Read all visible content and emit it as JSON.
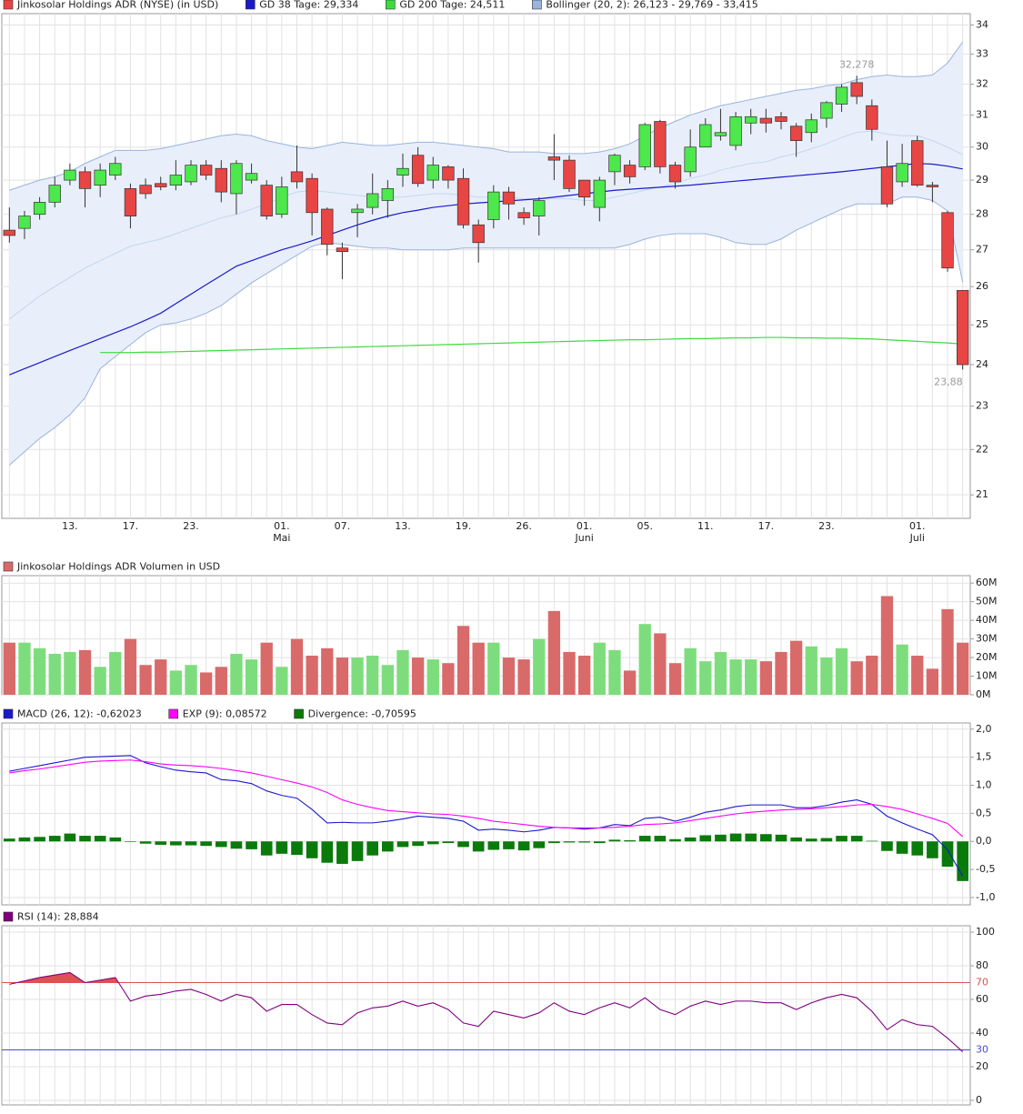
{
  "chart_data": [
    {
      "type": "candlestick",
      "log": true,
      "grid": true,
      "ylim": [
        20.5,
        34.4
      ],
      "yticks": [
        21,
        22,
        23,
        24,
        25,
        26,
        27,
        28,
        29,
        30,
        31,
        32,
        33,
        34
      ],
      "categories": [
        null,
        null,
        null,
        null,
        "13.",
        null,
        null,
        null,
        "17.",
        null,
        null,
        null,
        "23.",
        null,
        null,
        null,
        null,
        null,
        "01.\nMai",
        null,
        null,
        null,
        "07.",
        null,
        null,
        null,
        "13.",
        null,
        null,
        null,
        "19.",
        null,
        null,
        null,
        "26.",
        null,
        null,
        null,
        "01.\nJuni",
        null,
        null,
        null,
        "05.",
        null,
        null,
        null,
        "11.",
        null,
        null,
        null,
        "17.",
        null,
        null,
        null,
        "23.",
        null,
        null,
        null,
        null,
        null,
        "01.\nJuli",
        null,
        null,
        null
      ],
      "ohlc": {
        "name": "Jinkosolar Holdings ADR (NYSE) (in USD)",
        "up_color": "#4ce84c",
        "down_color": "#e84545",
        "open": [
          27.55,
          27.6,
          28.0,
          28.35,
          29.0,
          29.25,
          28.85,
          29.15,
          28.75,
          28.85,
          28.9,
          28.85,
          28.95,
          29.45,
          29.35,
          28.6,
          29.0,
          28.85,
          28.0,
          29.25,
          29.05,
          28.15,
          27.05,
          28.05,
          28.2,
          28.4,
          29.15,
          29.75,
          29.0,
          29.4,
          29.05,
          27.7,
          27.85,
          28.65,
          28.05,
          27.95,
          29.7,
          29.6,
          29.0,
          28.2,
          29.25,
          29.45,
          29.4,
          30.8,
          29.45,
          29.25,
          30.0,
          30.35,
          30.05,
          30.75,
          30.9,
          30.95,
          30.65,
          30.45,
          30.9,
          31.35,
          32.05,
          31.3,
          29.4,
          28.95,
          30.2,
          28.85,
          28.05,
          25.9
        ],
        "high": [
          28.2,
          28.1,
          28.5,
          29.1,
          29.5,
          29.4,
          29.5,
          29.7,
          28.9,
          29.05,
          29.1,
          29.6,
          29.6,
          29.6,
          29.6,
          29.6,
          29.5,
          29.0,
          29.1,
          30.05,
          29.2,
          28.2,
          27.2,
          28.3,
          29.2,
          29.0,
          29.8,
          30.0,
          29.7,
          29.45,
          29.35,
          27.85,
          28.85,
          28.8,
          28.2,
          28.5,
          30.4,
          29.75,
          29.0,
          29.1,
          29.8,
          29.6,
          30.75,
          30.85,
          29.55,
          30.55,
          30.9,
          31.2,
          31.1,
          31.2,
          31.2,
          31.1,
          30.75,
          31.05,
          31.45,
          32.0,
          32.278,
          31.5,
          30.2,
          30.1,
          30.35,
          28.95,
          28.1,
          25.9
        ],
        "low": [
          27.2,
          27.3,
          27.85,
          28.2,
          28.85,
          28.2,
          28.5,
          29.0,
          27.6,
          28.45,
          28.7,
          28.7,
          28.85,
          29.0,
          28.35,
          28.0,
          28.9,
          27.85,
          27.9,
          28.75,
          27.4,
          26.85,
          26.2,
          27.35,
          28.0,
          27.9,
          28.8,
          28.8,
          28.75,
          28.75,
          27.6,
          26.65,
          27.6,
          27.85,
          27.7,
          27.4,
          29.0,
          28.65,
          28.25,
          27.8,
          28.85,
          28.9,
          29.3,
          29.2,
          28.75,
          29.1,
          30.0,
          30.2,
          29.9,
          30.4,
          30.45,
          30.55,
          29.7,
          30.15,
          30.6,
          31.1,
          31.35,
          30.2,
          28.2,
          28.8,
          28.8,
          28.35,
          26.4,
          23.88
        ],
        "close": [
          27.4,
          27.95,
          28.35,
          28.85,
          29.3,
          28.75,
          29.3,
          29.5,
          27.95,
          28.6,
          28.8,
          29.15,
          29.45,
          29.15,
          28.65,
          29.5,
          29.2,
          27.95,
          28.8,
          28.95,
          28.05,
          27.15,
          26.95,
          28.15,
          28.6,
          28.75,
          29.35,
          28.9,
          29.45,
          29.0,
          27.7,
          27.2,
          28.65,
          28.3,
          27.9,
          28.4,
          29.6,
          28.75,
          28.5,
          29.0,
          29.75,
          29.1,
          30.7,
          29.4,
          28.95,
          30.0,
          30.7,
          30.45,
          30.95,
          30.95,
          30.75,
          30.8,
          30.2,
          30.85,
          31.4,
          31.9,
          31.6,
          30.55,
          28.3,
          29.5,
          28.85,
          28.8,
          26.5,
          24.0
        ]
      },
      "series": [
        {
          "name": "GD 38 Tage: 29,334",
          "color": "#1a1acc",
          "values": [
            23.75,
            23.9,
            24.05,
            24.2,
            24.35,
            24.5,
            24.65,
            24.8,
            24.95,
            25.12,
            25.3,
            25.55,
            25.8,
            26.05,
            26.3,
            26.55,
            26.7,
            26.85,
            27.0,
            27.12,
            27.25,
            27.4,
            27.55,
            27.7,
            27.83,
            27.95,
            28.05,
            28.12,
            28.2,
            28.25,
            28.3,
            28.33,
            28.36,
            28.39,
            28.42,
            28.45,
            28.5,
            28.55,
            28.6,
            28.65,
            28.7,
            28.73,
            28.76,
            28.79,
            28.82,
            28.85,
            28.89,
            28.93,
            28.97,
            29.01,
            29.05,
            29.09,
            29.13,
            29.17,
            29.21,
            29.25,
            29.3,
            29.35,
            29.4,
            29.45,
            29.5,
            29.48,
            29.42,
            29.334
          ]
        },
        {
          "name": "GD 200 Tage: 24,511",
          "color": "#3ddc3d",
          "values": [
            null,
            null,
            null,
            null,
            null,
            null,
            24.3,
            24.3,
            24.3,
            24.31,
            24.31,
            24.32,
            24.33,
            24.34,
            24.35,
            24.36,
            24.37,
            24.38,
            24.39,
            24.4,
            24.41,
            24.42,
            24.43,
            24.44,
            24.45,
            24.46,
            24.47,
            24.48,
            24.49,
            24.5,
            24.51,
            24.52,
            24.53,
            24.54,
            24.55,
            24.56,
            24.57,
            24.58,
            24.59,
            24.6,
            24.61,
            24.62,
            24.62,
            24.63,
            24.64,
            24.65,
            24.65,
            24.66,
            24.67,
            24.67,
            24.68,
            24.68,
            24.67,
            24.67,
            24.66,
            24.66,
            24.65,
            24.64,
            24.62,
            24.6,
            24.58,
            24.56,
            24.54,
            24.511
          ]
        }
      ],
      "bands": {
        "name": "Bollinger (20, 2): 26,123 - 29,769 - 33,415",
        "color": "#9ab4dc",
        "fill": "#e8effa",
        "middle_color": "#c6d6ee",
        "upper": [
          28.7,
          28.85,
          29.0,
          29.1,
          29.25,
          29.5,
          29.7,
          29.9,
          29.9,
          29.9,
          29.95,
          30.05,
          30.15,
          30.25,
          30.35,
          30.4,
          30.35,
          30.2,
          30.1,
          30.0,
          29.95,
          30.05,
          30.15,
          30.1,
          30.05,
          30.05,
          30.1,
          30.15,
          30.15,
          30.1,
          30.05,
          30.0,
          29.95,
          29.85,
          29.85,
          29.85,
          29.8,
          29.8,
          29.8,
          29.85,
          29.95,
          30.1,
          30.35,
          30.6,
          30.8,
          31.0,
          31.15,
          31.3,
          31.4,
          31.5,
          31.6,
          31.7,
          31.8,
          31.85,
          31.95,
          32.0,
          32.15,
          32.25,
          32.3,
          32.25,
          32.25,
          32.3,
          32.7,
          33.415
        ],
        "middle": [
          25.15,
          25.45,
          25.75,
          26.0,
          26.25,
          26.5,
          26.7,
          26.9,
          27.1,
          27.2,
          27.3,
          27.45,
          27.6,
          27.75,
          27.9,
          28.0,
          28.15,
          28.3,
          28.5,
          28.65,
          28.7,
          28.65,
          28.6,
          28.55,
          28.5,
          28.5,
          28.5,
          28.55,
          28.6,
          28.6,
          28.55,
          28.5,
          28.5,
          28.5,
          28.45,
          28.45,
          28.45,
          28.45,
          28.4,
          28.4,
          28.5,
          28.6,
          28.7,
          28.8,
          28.9,
          29.05,
          29.15,
          29.3,
          29.4,
          29.5,
          29.55,
          29.7,
          29.8,
          29.95,
          30.1,
          30.3,
          30.45,
          30.5,
          30.4,
          30.35,
          30.35,
          30.2,
          30.0,
          29.769
        ],
        "lower": [
          21.65,
          21.95,
          22.25,
          22.5,
          22.8,
          23.2,
          23.9,
          24.2,
          24.5,
          24.8,
          25.0,
          25.05,
          25.15,
          25.3,
          25.5,
          25.8,
          26.1,
          26.35,
          26.6,
          26.85,
          27.1,
          27.2,
          27.15,
          27.1,
          27.05,
          27.05,
          27.0,
          27.0,
          27.0,
          27.0,
          27.05,
          27.05,
          27.05,
          27.05,
          27.05,
          27.05,
          27.05,
          27.05,
          27.05,
          27.05,
          27.05,
          27.15,
          27.3,
          27.4,
          27.45,
          27.45,
          27.45,
          27.35,
          27.2,
          27.15,
          27.15,
          27.3,
          27.55,
          27.75,
          27.95,
          28.15,
          28.3,
          28.3,
          28.3,
          28.5,
          28.5,
          28.4,
          28.1,
          26.123
        ]
      },
      "annotations": [
        {
          "value": 32.278,
          "label": "32,278"
        },
        {
          "value": 23.88,
          "label": "23,88"
        }
      ]
    },
    {
      "type": "bar",
      "grid": true,
      "name": "Jinkosolar Holdings ADR Volumen in USD",
      "colors": {
        "up": "#7ddd7d",
        "down": "#d96a6a"
      },
      "ylim": [
        0,
        64
      ],
      "yticks": [
        {
          "value": 0,
          "label": "0M"
        },
        {
          "value": 10,
          "label": "10M"
        },
        {
          "value": 20,
          "label": "20M"
        },
        {
          "value": 30,
          "label": "30M"
        },
        {
          "value": 40,
          "label": "40M"
        },
        {
          "value": 50,
          "label": "50M"
        },
        {
          "value": 60,
          "label": "60M"
        }
      ],
      "values": [
        28,
        28,
        25,
        22,
        23,
        24,
        15,
        23,
        30,
        16,
        19,
        13,
        16,
        12,
        15,
        22,
        19,
        28,
        15,
        30,
        21,
        25,
        20,
        20,
        21,
        16,
        24,
        20,
        19,
        17,
        37,
        28,
        28,
        20,
        19,
        30,
        45,
        23,
        21,
        28,
        24,
        13,
        38,
        33,
        17,
        25,
        18,
        23,
        19,
        19,
        18,
        23,
        29,
        26,
        20,
        25,
        18,
        21,
        53,
        27,
        21,
        14,
        46,
        28
      ]
    },
    {
      "type": "combo",
      "grid": true,
      "ylim": [
        -1.13,
        2.11
      ],
      "yticks": [
        {
          "value": -1,
          "label": "-1,0"
        },
        {
          "value": -0.5,
          "label": "-0,5"
        },
        {
          "value": 0,
          "label": "0,0"
        },
        {
          "value": 0.5,
          "label": "0,5"
        },
        {
          "value": 1,
          "label": "1,0"
        },
        {
          "value": 1.5,
          "label": "1,5"
        },
        {
          "value": 2,
          "label": "2,0"
        }
      ],
      "series": [
        {
          "name": "MACD (26, 12): -0,62023",
          "color": "#1a1acc",
          "values": [
            1.25,
            1.3,
            1.35,
            1.4,
            1.45,
            1.5,
            1.51,
            1.52,
            1.53,
            1.4,
            1.33,
            1.27,
            1.24,
            1.22,
            1.1,
            1.08,
            1.03,
            0.9,
            0.82,
            0.77,
            0.57,
            0.33,
            0.34,
            0.33,
            0.33,
            0.36,
            0.4,
            0.45,
            0.43,
            0.41,
            0.36,
            0.2,
            0.22,
            0.2,
            0.17,
            0.2,
            0.25,
            0.24,
            0.22,
            0.24,
            0.3,
            0.28,
            0.41,
            0.43,
            0.36,
            0.43,
            0.52,
            0.56,
            0.62,
            0.65,
            0.65,
            0.65,
            0.6,
            0.6,
            0.64,
            0.7,
            0.74,
            0.66,
            0.45,
            0.33,
            0.22,
            0.12,
            -0.15,
            -0.62023
          ]
        },
        {
          "name": "EXP (9): 0,08572",
          "color": "#ff00ff",
          "values": [
            1.22,
            1.26,
            1.29,
            1.33,
            1.37,
            1.41,
            1.43,
            1.44,
            1.45,
            1.42,
            1.38,
            1.36,
            1.35,
            1.33,
            1.3,
            1.26,
            1.22,
            1.16,
            1.1,
            1.04,
            0.97,
            0.87,
            0.74,
            0.66,
            0.6,
            0.55,
            0.53,
            0.51,
            0.49,
            0.48,
            0.45,
            0.41,
            0.36,
            0.33,
            0.3,
            0.27,
            0.25,
            0.24,
            0.24,
            0.24,
            0.25,
            0.27,
            0.3,
            0.31,
            0.33,
            0.37,
            0.41,
            0.45,
            0.49,
            0.52,
            0.54,
            0.56,
            0.57,
            0.58,
            0.6,
            0.62,
            0.65,
            0.66,
            0.62,
            0.57,
            0.49,
            0.41,
            0.32,
            0.08572
          ]
        },
        {
          "name": "Divergence: -0,70595",
          "color": "#0a7a0a",
          "type": "bar",
          "values": [
            0.05,
            0.07,
            0.08,
            0.1,
            0.14,
            0.1,
            0.1,
            0.07,
            -0.01,
            -0.04,
            -0.06,
            -0.07,
            -0.07,
            -0.08,
            -0.1,
            -0.13,
            -0.14,
            -0.25,
            -0.22,
            -0.24,
            -0.3,
            -0.38,
            -0.4,
            -0.35,
            -0.25,
            -0.18,
            -0.1,
            -0.08,
            -0.05,
            -0.03,
            -0.1,
            -0.18,
            -0.15,
            -0.14,
            -0.16,
            -0.12,
            -0.03,
            -0.02,
            -0.02,
            -0.03,
            0.03,
            0.02,
            0.1,
            0.1,
            0.04,
            0.07,
            0.11,
            0.12,
            0.14,
            0.14,
            0.13,
            0.12,
            0.07,
            0.05,
            0.06,
            0.1,
            0.1,
            0.01,
            -0.17,
            -0.22,
            -0.25,
            -0.3,
            -0.45,
            -0.70595
          ]
        }
      ]
    },
    {
      "type": "line",
      "grid": true,
      "ylim": [
        -2.7,
        103.8
      ],
      "yticks": [
        0,
        20,
        40,
        60,
        80,
        100
      ],
      "levels": [
        70,
        30
      ],
      "level_colors": [
        "#e05050",
        "#4a4ad0"
      ],
      "fill_color": "#e05050",
      "series": [
        {
          "name": "RSI (14): 28,884",
          "color": "#800080",
          "values": [
            69,
            71,
            73,
            74.5,
            76,
            70,
            71.5,
            73,
            59,
            62,
            63,
            65,
            66,
            63,
            59,
            63,
            61,
            53,
            57,
            57,
            51,
            46,
            45,
            52,
            55,
            56,
            59,
            56,
            58,
            54,
            46,
            44,
            53,
            51,
            49,
            52,
            58,
            53,
            51,
            55,
            58,
            55,
            61,
            54,
            51,
            56,
            59,
            57,
            59,
            59,
            58,
            58,
            54,
            58,
            61,
            63,
            61,
            53,
            42,
            48,
            45,
            44,
            37,
            28.884
          ]
        }
      ]
    }
  ]
}
